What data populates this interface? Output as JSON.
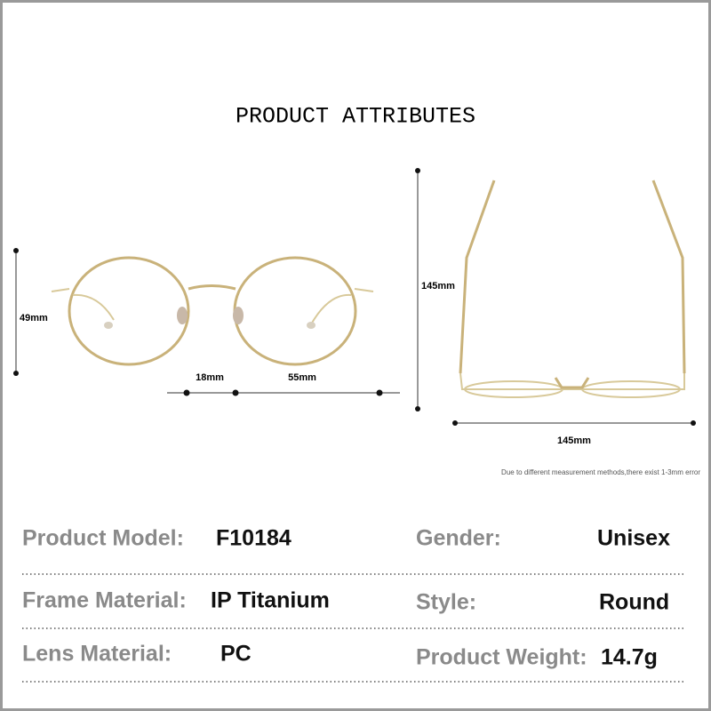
{
  "title": "PRODUCT ATTRIBUTES",
  "dimensions": {
    "lens_height": "49mm",
    "bridge_width": "18mm",
    "lens_width": "55mm",
    "temple_length": "145mm",
    "frame_width": "145mm"
  },
  "note": "Due to different measurement methods,there exist 1-3mm error",
  "attributes": [
    {
      "label": "Product Model:",
      "value": "F10184"
    },
    {
      "label": "Gender:",
      "value": "Unisex"
    },
    {
      "label": "Frame Material:",
      "value": "IP Titanium"
    },
    {
      "label": "Style:",
      "value": "Round"
    },
    {
      "label": "Lens Material:",
      "value": "PC"
    },
    {
      "label": "Product Weight:",
      "value": "14.7g"
    }
  ]
}
